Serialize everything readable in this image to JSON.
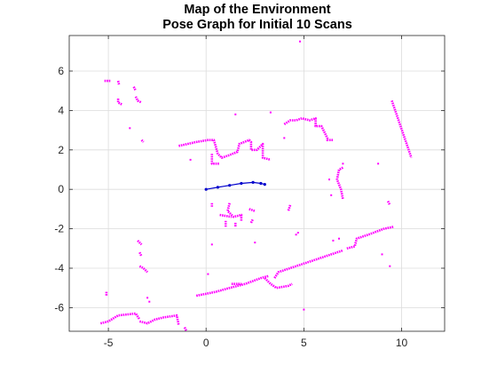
{
  "chart_data": {
    "type": "scatter",
    "title": [
      "Map of the Environment",
      "Pose Graph for Initial 10 Scans"
    ],
    "xlabel": "",
    "ylabel": "",
    "xlim": [
      -7,
      12.2
    ],
    "ylim": [
      -7.2,
      7.8
    ],
    "xticks": [
      -5,
      0,
      5,
      10
    ],
    "xtick_labels": [
      "-5",
      "0",
      "5",
      "10"
    ],
    "yticks": [
      -6,
      -4,
      -2,
      0,
      2,
      4,
      6
    ],
    "ytick_labels": [
      "-6",
      "-4",
      "-2",
      "0",
      "2",
      "4",
      "6"
    ],
    "grid": true,
    "colors": {
      "map_points": "#ff00ff",
      "pose_graph": "#0000cc"
    },
    "map_segments": [
      [
        [
          -5.2,
          5.5
        ],
        [
          -4.9,
          5.5
        ]
      ],
      [
        [
          -4.5,
          5.5
        ],
        [
          -4.45,
          5.3
        ]
      ],
      [
        [
          -3.7,
          5.2
        ],
        [
          -3.6,
          5.0
        ]
      ],
      [
        [
          -3.6,
          4.7
        ],
        [
          -3.5,
          4.5
        ],
        [
          -3.3,
          4.4
        ]
      ],
      [
        [
          -4.5,
          4.6
        ],
        [
          -4.5,
          4.4
        ],
        [
          -4.3,
          4.3
        ]
      ],
      [
        [
          -3.3,
          2.5
        ],
        [
          -3.2,
          2.4
        ]
      ],
      [
        [
          -1.4,
          2.2
        ],
        [
          -0.5,
          2.4
        ],
        [
          0.1,
          2.5
        ],
        [
          0.4,
          2.5
        ],
        [
          0.6,
          1.8
        ],
        [
          0.8,
          1.6
        ],
        [
          1.1,
          1.7
        ],
        [
          1.6,
          1.9
        ],
        [
          1.7,
          2.3
        ],
        [
          2.2,
          2.5
        ],
        [
          2.3,
          2.4
        ],
        [
          2.3,
          2.0
        ],
        [
          2.6,
          2.0
        ],
        [
          2.9,
          2.3
        ],
        [
          2.9,
          1.6
        ],
        [
          3.3,
          1.5
        ]
      ],
      [
        [
          0.3,
          1.8
        ],
        [
          0.3,
          1.3
        ],
        [
          0.7,
          1.3
        ]
      ],
      [
        [
          4.0,
          3.3
        ],
        [
          4.3,
          3.5
        ],
        [
          4.6,
          3.5
        ],
        [
          4.9,
          3.6
        ],
        [
          5.3,
          3.5
        ],
        [
          5.6,
          3.6
        ],
        [
          5.6,
          3.2
        ],
        [
          5.9,
          3.2
        ],
        [
          6.2,
          2.6
        ],
        [
          6.2,
          2.5
        ],
        [
          6.5,
          2.5
        ]
      ],
      [
        [
          7.0,
          1.1
        ],
        [
          6.8,
          1.0
        ],
        [
          6.7,
          0.5
        ],
        [
          6.9,
          0.0
        ],
        [
          7.0,
          -0.5
        ]
      ],
      [
        [
          9.5,
          4.5
        ],
        [
          10.5,
          1.6
        ]
      ],
      [
        [
          1.2,
          -0.7
        ],
        [
          1.1,
          -1.1
        ],
        [
          1.4,
          -1.4
        ],
        [
          1.8,
          -1.3
        ],
        [
          1.8,
          -1.6
        ]
      ],
      [
        [
          0.7,
          -1.3
        ],
        [
          1.3,
          -1.4
        ]
      ],
      [
        [
          1.0,
          -1.6
        ],
        [
          1.0,
          -1.9
        ]
      ],
      [
        [
          1.5,
          -1.7
        ],
        [
          1.5,
          -1.9
        ]
      ],
      [
        [
          2.2,
          -1.0
        ],
        [
          2.5,
          -1.1
        ]
      ],
      [
        [
          2.3,
          -1.7
        ],
        [
          2.4,
          -1.5
        ]
      ],
      [
        [
          0.3,
          -0.7
        ],
        [
          0.3,
          -0.9
        ]
      ],
      [
        [
          4.3,
          -0.8
        ],
        [
          4.2,
          -1.1
        ]
      ],
      [
        [
          -0.5,
          -5.4
        ],
        [
          0.5,
          -5.2
        ],
        [
          1.2,
          -5.0
        ],
        [
          2.0,
          -4.8
        ],
        [
          2.8,
          -4.5
        ],
        [
          3.2,
          -4.4
        ]
      ],
      [
        [
          3.5,
          -4.5
        ],
        [
          3.7,
          -4.2
        ],
        [
          4.6,
          -3.9
        ],
        [
          5.5,
          -3.6
        ],
        [
          6.4,
          -3.3
        ],
        [
          7.0,
          -3.1
        ]
      ],
      [
        [
          7.2,
          -3.0
        ],
        [
          7.6,
          -2.9
        ],
        [
          7.7,
          -2.5
        ],
        [
          8.3,
          -2.3
        ],
        [
          9.1,
          -2.0
        ],
        [
          9.6,
          -1.9
        ]
      ],
      [
        [
          3.0,
          -4.5
        ],
        [
          3.3,
          -4.8
        ],
        [
          3.6,
          -5.0
        ],
        [
          4.2,
          -4.9
        ],
        [
          4.4,
          -4.8
        ]
      ],
      [
        [
          1.3,
          -4.8
        ],
        [
          1.8,
          -4.8
        ]
      ],
      [
        [
          -5.4,
          -6.8
        ],
        [
          -5.0,
          -6.7
        ],
        [
          -4.5,
          -6.4
        ],
        [
          -3.6,
          -6.3
        ],
        [
          -3.4,
          -6.6
        ]
      ],
      [
        [
          -3.4,
          -6.7
        ],
        [
          -3.0,
          -6.8
        ],
        [
          -2.6,
          -6.6
        ],
        [
          -2.2,
          -6.5
        ],
        [
          -1.5,
          -6.4
        ],
        [
          -1.4,
          -6.9
        ]
      ],
      [
        [
          -3.5,
          -2.6
        ],
        [
          -3.3,
          -2.8
        ]
      ],
      [
        [
          -3.4,
          -3.2
        ],
        [
          -3.3,
          -3.4
        ]
      ],
      [
        [
          -3.4,
          -3.9
        ],
        [
          -3.2,
          -4.0
        ],
        [
          -3.0,
          -4.2
        ]
      ],
      [
        [
          -5.1,
          -5.2
        ],
        [
          -5.1,
          -5.4
        ]
      ],
      [
        [
          9.3,
          -0.6
        ],
        [
          9.4,
          -0.8
        ]
      ],
      [
        [
          -1.1,
          -7.0
        ],
        [
          -1.0,
          -7.2
        ]
      ]
    ],
    "map_points": [
      [
        -3.9,
        3.1
      ],
      [
        -0.8,
        1.5
      ],
      [
        1.5,
        3.8
      ],
      [
        3.3,
        3.9
      ],
      [
        4.0,
        2.6
      ],
      [
        7.0,
        1.3
      ],
      [
        8.8,
        1.3
      ],
      [
        6.3,
        0.5
      ],
      [
        6.4,
        -0.3
      ],
      [
        0.3,
        -2.8
      ],
      [
        2.5,
        -2.7
      ],
      [
        4.6,
        -2.3
      ],
      [
        4.7,
        -2.2
      ],
      [
        6.5,
        -2.6
      ],
      [
        6.8,
        -2.5
      ],
      [
        9.0,
        -3.3
      ],
      [
        9.4,
        -3.9
      ],
      [
        0.1,
        -4.3
      ],
      [
        -3.0,
        -5.5
      ],
      [
        -2.9,
        -5.7
      ],
      [
        5.0,
        -6.1
      ],
      [
        4.8,
        7.5
      ]
    ],
    "pose_graph": {
      "x": [
        0,
        0.6,
        1.2,
        1.8,
        2.4,
        2.8,
        3.0
      ],
      "y": [
        0,
        0.1,
        0.2,
        0.3,
        0.35,
        0.3,
        0.25
      ]
    }
  }
}
